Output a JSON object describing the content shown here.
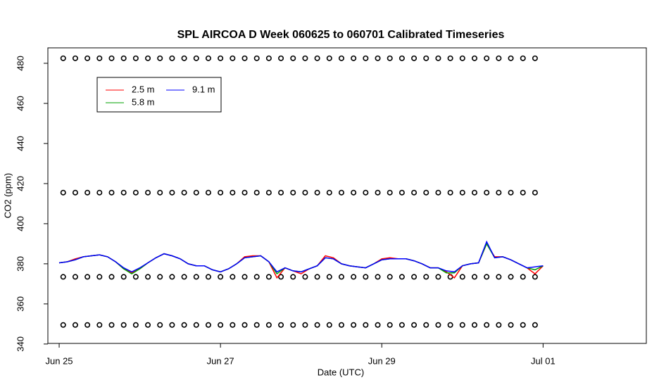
{
  "chart_data": {
    "type": "line",
    "title": "SPL AIRCOA D  Week 060625 to 060701  Calibrated Timeseries",
    "xlabel": "Date (UTC)",
    "ylabel": "CO2 (ppm)",
    "xlim": [
      -0.14,
      7.28
    ],
    "ylim": [
      340.3,
      487.7
    ],
    "xticks": [
      {
        "value": 0,
        "label": "Jun 25"
      },
      {
        "value": 2,
        "label": "Jun 27"
      },
      {
        "value": 4,
        "label": "Jun 29"
      },
      {
        "value": 6,
        "label": "Jul 01"
      }
    ],
    "yticks": [
      340,
      360,
      380,
      400,
      420,
      440,
      460,
      480
    ],
    "legend": "top-left",
    "x": [
      0,
      0.1,
      0.2,
      0.3,
      0.4,
      0.5,
      0.6,
      0.7,
      0.8,
      0.9,
      1,
      1.1,
      1.2,
      1.3,
      1.4,
      1.5,
      1.6,
      1.7,
      1.8,
      1.9,
      2,
      2.1,
      2.2,
      2.3,
      2.4,
      2.5,
      2.6,
      2.7,
      2.8,
      2.9,
      3,
      3.1,
      3.2,
      3.3,
      3.4,
      3.5,
      3.6,
      3.7,
      3.8,
      3.9,
      4,
      4.1,
      4.2,
      4.3,
      4.4,
      4.5,
      4.6,
      4.7,
      4.8,
      4.9,
      5,
      5.1,
      5.2,
      5.3,
      5.4,
      5.5,
      5.6,
      5.7,
      5.8,
      5.9,
      6
    ],
    "series": [
      {
        "name": "2.5 m",
        "color": "#ff0000",
        "values": [
          380.5,
          381,
          382.5,
          383.5,
          384,
          384.5,
          383.5,
          381,
          377.5,
          375.5,
          377.5,
          380.5,
          383,
          385,
          384,
          382.5,
          380,
          379,
          379,
          377,
          376,
          377.5,
          380,
          383.5,
          384,
          384,
          381,
          373,
          378,
          376.5,
          375,
          377.5,
          379,
          384,
          383,
          380,
          379,
          378.5,
          378,
          380,
          382.5,
          383,
          382.5,
          382.5,
          381.5,
          380,
          378,
          378,
          376,
          373,
          379,
          380,
          380.5,
          390,
          383.5,
          383.5,
          382,
          380,
          378,
          375,
          379
        ]
      },
      {
        "name": "5.8 m",
        "color": "#00a000",
        "values": [
          380.5,
          381,
          382,
          383.5,
          384,
          384.5,
          383.5,
          381,
          377.5,
          375,
          377.5,
          380.5,
          383,
          385,
          384,
          382.5,
          380,
          379,
          379,
          377,
          376,
          377.5,
          380,
          383,
          383.5,
          384,
          381,
          375,
          378,
          376.5,
          376,
          377.5,
          379,
          383,
          382.5,
          380,
          379,
          378.5,
          378,
          380,
          382,
          382.5,
          382.5,
          382.5,
          381.5,
          380,
          378,
          378,
          375.5,
          375.5,
          379,
          380,
          380.5,
          390,
          383,
          383.5,
          382,
          380,
          378,
          377,
          379
        ]
      },
      {
        "name": "9.1 m",
        "color": "#0000ff",
        "values": [
          380.5,
          381,
          382,
          383.5,
          384,
          384.5,
          383.5,
          381,
          378,
          376,
          378,
          380.5,
          383,
          385,
          384,
          382.5,
          380,
          379,
          379,
          377,
          376,
          377.5,
          380,
          383,
          383.5,
          384,
          381,
          376,
          378,
          376.5,
          376,
          377.5,
          379,
          383,
          382.5,
          380,
          379,
          378.5,
          378,
          380,
          382,
          382.5,
          382.5,
          382.5,
          381.5,
          380,
          378,
          378,
          376.5,
          376,
          379,
          380,
          380.5,
          391,
          383,
          383.5,
          382,
          380,
          378,
          378.5,
          379
        ]
      }
    ],
    "ref_x": [
      0.05,
      0.2,
      0.35,
      0.5,
      0.65,
      0.8,
      0.95,
      1.1,
      1.25,
      1.4,
      1.55,
      1.7,
      1.85,
      2,
      2.15,
      2.3,
      2.45,
      2.6,
      2.75,
      2.9,
      3.05,
      3.2,
      3.35,
      3.5,
      3.65,
      3.8,
      3.95,
      4.1,
      4.25,
      4.4,
      4.55,
      4.7,
      4.85,
      5,
      5.15,
      5.3,
      5.45,
      5.6,
      5.75,
      5.9
    ],
    "ref_series": [
      {
        "color": "#000000",
        "values": [
          482.5,
          482.5,
          482.5,
          482.5,
          482.5,
          482.5,
          482.5,
          482.5,
          482.5,
          482.5,
          482.5,
          482.5,
          482.5,
          482.5,
          482.5,
          482.5,
          482.5,
          482.5,
          482.5,
          482.5,
          482.5,
          482.5,
          482.5,
          482.5,
          482.5,
          482.5,
          482.5,
          482.5,
          482.5,
          482.5,
          482.5,
          482.5,
          482.5,
          482.5,
          482.5,
          482.5,
          482.5,
          482.5,
          482.5,
          482.5
        ]
      },
      {
        "color": "#000000",
        "values": [
          415.5,
          415.5,
          415.5,
          415.5,
          415.5,
          415.5,
          415.5,
          415.5,
          415.5,
          415.5,
          415.5,
          415.5,
          415.5,
          415.5,
          415.5,
          415.5,
          415.5,
          415.5,
          415.5,
          415.5,
          415.5,
          415.5,
          415.5,
          415.5,
          415.5,
          415.5,
          415.5,
          415.5,
          415.5,
          415.5,
          415.5,
          415.5,
          415.5,
          415.5,
          415.5,
          415.5,
          415.5,
          415.5,
          415.5,
          415.5
        ]
      },
      {
        "color": "#000000",
        "values": [
          373.5,
          373.5,
          373.5,
          373.5,
          373.5,
          373.5,
          373.5,
          373.5,
          373.5,
          373.5,
          373.5,
          373.5,
          373.5,
          373.5,
          373.5,
          373.5,
          373.5,
          373.5,
          373.5,
          373.5,
          373.5,
          373.5,
          373.5,
          373.5,
          373.5,
          373.5,
          373.5,
          373.5,
          373.5,
          373.5,
          373.5,
          373.5,
          373.5,
          373.5,
          373.5,
          373.5,
          373.5,
          373.5,
          373.5,
          373.5
        ]
      },
      {
        "color": "#000000",
        "values": [
          349.5,
          349.5,
          349.5,
          349.5,
          349.5,
          349.5,
          349.5,
          349.5,
          349.5,
          349.5,
          349.5,
          349.5,
          349.5,
          349.5,
          349.5,
          349.5,
          349.5,
          349.5,
          349.5,
          349.5,
          349.5,
          349.5,
          349.5,
          349.5,
          349.5,
          349.5,
          349.5,
          349.5,
          349.5,
          349.5,
          349.5,
          349.5,
          349.5,
          349.5,
          349.5,
          349.5,
          349.5,
          349.5,
          349.5,
          349.5
        ]
      }
    ]
  }
}
